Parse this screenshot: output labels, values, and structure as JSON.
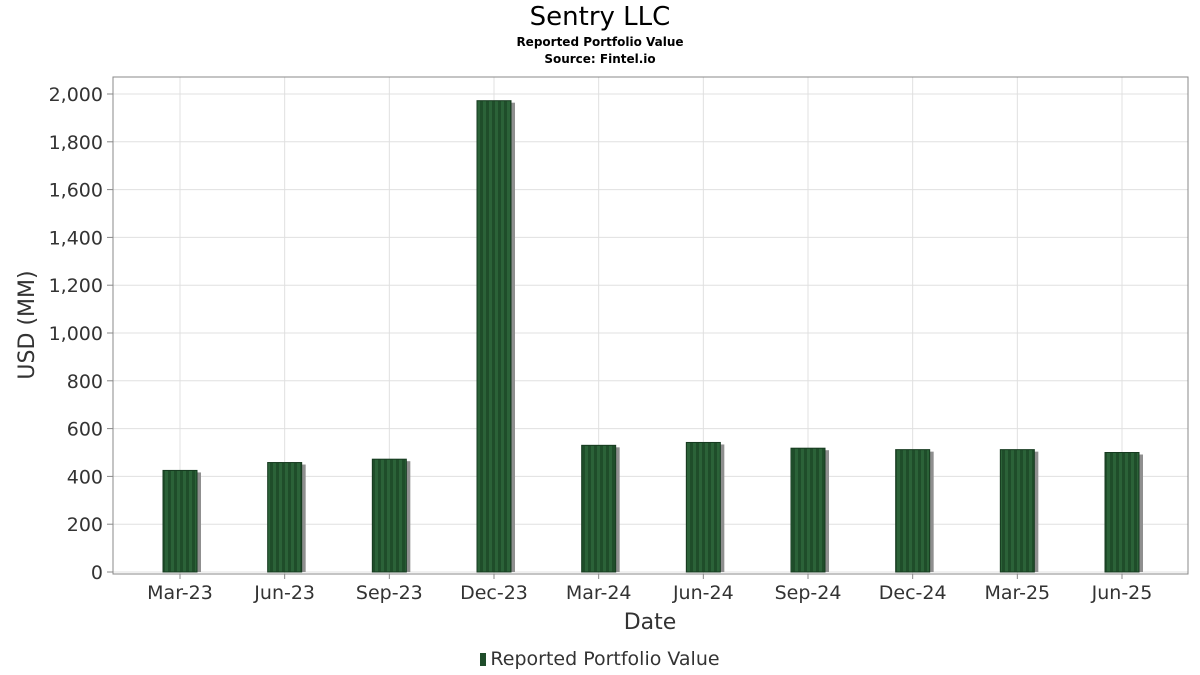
{
  "chart_data": {
    "type": "bar",
    "title": "Sentry LLC",
    "subtitle": "Reported Portfolio Value",
    "source": "Source: Fintel.io",
    "xlabel": "Date",
    "ylabel": "USD (MM)",
    "categories": [
      "Mar-23",
      "Jun-23",
      "Sep-23",
      "Dec-23",
      "Mar-24",
      "Jun-24",
      "Sep-24",
      "Dec-24",
      "Mar-25",
      "Jun-25"
    ],
    "series": [
      {
        "name": "Reported Portfolio Value",
        "values": [
          425,
          458,
          472,
          1972,
          530,
          542,
          518,
          512,
          512,
          500
        ]
      }
    ],
    "ylim": [
      0,
      2000
    ],
    "yticks": [
      0,
      200,
      400,
      600,
      800,
      1000,
      1200,
      1400,
      1600,
      1800,
      2000
    ],
    "ytick_labels": [
      "0",
      "200",
      "400",
      "600",
      "800",
      "1,000",
      "1,200",
      "1,400",
      "1,600",
      "1,800",
      "2,000"
    ],
    "grid": true,
    "legend_position": "bottom-center",
    "colors": {
      "bar": "#1f4d2a",
      "bar_stripe": "#2d6a3b",
      "bar_shadow": "#8f8f8f",
      "grid": "#e0e0e0",
      "frame": "#888888"
    }
  }
}
